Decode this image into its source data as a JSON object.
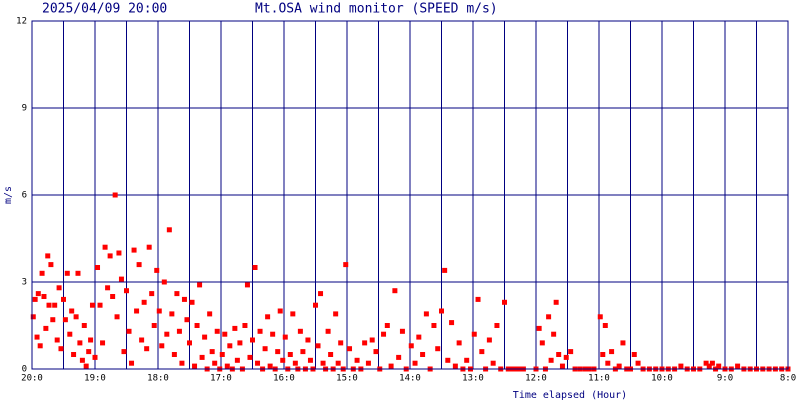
{
  "chart_data": {
    "type": "scatter",
    "date": "2025/04/09 20:00",
    "title": "Mt.OSA wind monitor (SPEED m/s)",
    "y_label": "m/s",
    "x_label": "Time elapsed (Hour)",
    "color": "#ff0000",
    "grid": true,
    "xlim": [
      0,
      12
    ],
    "ylim": [
      0,
      12
    ],
    "yticks": [
      0,
      3,
      6,
      9,
      12
    ],
    "xticks": [
      {
        "value": 0,
        "label": "20:0"
      },
      {
        "value": 1,
        "label": "19:0"
      },
      {
        "value": 2,
        "label": "18:0"
      },
      {
        "value": 3,
        "label": "17:0"
      },
      {
        "value": 4,
        "label": "16:0"
      },
      {
        "value": 5,
        "label": "15:0"
      },
      {
        "value": 6,
        "label": "14:0"
      },
      {
        "value": 7,
        "label": "13:0"
      },
      {
        "value": 8,
        "label": "12:0"
      },
      {
        "value": 9,
        "label": "11:0"
      },
      {
        "value": 10,
        "label": "10:0"
      },
      {
        "value": 11,
        "label": "9:0"
      },
      {
        "value": 12,
        "label": "8:0"
      }
    ],
    "x": [
      0.02,
      0.05,
      0.08,
      0.1,
      0.13,
      0.16,
      0.19,
      0.22,
      0.25,
      0.27,
      0.3,
      0.33,
      0.36,
      0.4,
      0.43,
      0.46,
      0.5,
      0.53,
      0.56,
      0.6,
      0.63,
      0.66,
      0.7,
      0.73,
      0.76,
      0.8,
      0.83,
      0.86,
      0.9,
      0.93,
      0.96,
      1.0,
      1.04,
      1.08,
      1.12,
      1.16,
      1.2,
      1.24,
      1.28,
      1.32,
      1.35,
      1.38,
      1.42,
      1.46,
      1.5,
      1.54,
      1.58,
      1.62,
      1.66,
      1.7,
      1.74,
      1.78,
      1.82,
      1.86,
      1.9,
      1.94,
      1.98,
      2.02,
      2.06,
      2.1,
      2.14,
      2.18,
      2.22,
      2.26,
      2.3,
      2.34,
      2.38,
      2.42,
      2.46,
      2.5,
      2.54,
      2.58,
      2.62,
      2.66,
      2.7,
      2.74,
      2.78,
      2.82,
      2.86,
      2.9,
      2.94,
      2.98,
      3.02,
      3.06,
      3.1,
      3.14,
      3.18,
      3.22,
      3.26,
      3.3,
      3.34,
      3.38,
      3.42,
      3.46,
      3.5,
      3.54,
      3.58,
      3.62,
      3.66,
      3.7,
      3.74,
      3.78,
      3.82,
      3.86,
      3.9,
      3.94,
      3.98,
      4.02,
      4.06,
      4.1,
      4.14,
      4.18,
      4.22,
      4.26,
      4.3,
      4.34,
      4.38,
      4.42,
      4.46,
      4.5,
      4.54,
      4.58,
      4.62,
      4.66,
      4.7,
      4.74,
      4.78,
      4.82,
      4.86,
      4.9,
      4.94,
      4.98,
      5.04,
      5.1,
      5.16,
      5.22,
      5.28,
      5.34,
      5.4,
      5.46,
      5.52,
      5.58,
      5.64,
      5.7,
      5.76,
      5.82,
      5.88,
      5.94,
      6.02,
      6.08,
      6.14,
      6.2,
      6.26,
      6.32,
      6.38,
      6.44,
      6.5,
      6.55,
      6.6,
      6.66,
      6.72,
      6.78,
      6.84,
      6.9,
      6.96,
      7.02,
      7.08,
      7.14,
      7.2,
      7.26,
      7.32,
      7.38,
      7.44,
      7.5,
      7.56,
      7.62,
      7.68,
      7.74,
      7.8,
      8.0,
      8.05,
      8.1,
      8.15,
      8.2,
      8.24,
      8.28,
      8.32,
      8.36,
      8.42,
      8.48,
      8.55,
      8.62,
      8.7,
      8.78,
      8.84,
      8.92,
      9.02,
      9.06,
      9.1,
      9.14,
      9.2,
      9.26,
      9.32,
      9.38,
      9.44,
      9.5,
      9.56,
      9.62,
      9.7,
      9.8,
      9.9,
      10.0,
      10.1,
      10.2,
      10.3,
      10.4,
      10.5,
      10.6,
      10.7,
      10.75,
      10.8,
      10.85,
      10.9,
      11.0,
      11.1,
      11.2,
      11.3,
      11.4,
      11.5,
      11.6,
      11.7,
      11.8,
      11.9,
      12.0
    ],
    "values": [
      1.8,
      2.4,
      1.1,
      2.6,
      0.8,
      3.3,
      2.5,
      1.4,
      3.9,
      2.2,
      3.6,
      1.7,
      2.2,
      1.0,
      2.8,
      0.7,
      2.4,
      1.7,
      3.3,
      1.2,
      2.0,
      0.5,
      1.8,
      3.3,
      0.9,
      0.3,
      1.5,
      0.1,
      0.6,
      1.0,
      2.2,
      0.4,
      3.5,
      2.2,
      0.9,
      4.2,
      2.8,
      3.9,
      2.5,
      6.0,
      1.8,
      4.0,
      3.1,
      0.6,
      2.7,
      1.3,
      0.2,
      4.1,
      2.0,
      3.6,
      1.0,
      2.3,
      0.7,
      4.2,
      2.6,
      1.5,
      3.4,
      2.0,
      0.8,
      3.0,
      1.2,
      4.8,
      1.9,
      0.5,
      2.6,
      1.3,
      0.2,
      2.4,
      1.7,
      0.9,
      2.3,
      0.1,
      1.5,
      2.9,
      0.4,
      1.1,
      0.0,
      1.9,
      0.6,
      0.2,
      1.3,
      0.0,
      0.5,
      1.2,
      0.1,
      0.8,
      0.0,
      1.4,
      0.3,
      0.9,
      0.0,
      1.5,
      2.9,
      0.4,
      1.0,
      3.5,
      0.2,
      1.3,
      0.0,
      0.7,
      1.8,
      0.1,
      1.2,
      0.0,
      0.6,
      2.0,
      0.3,
      1.1,
      0.0,
      0.5,
      1.9,
      0.2,
      0.0,
      1.3,
      0.6,
      0.0,
      1.0,
      0.3,
      0.0,
      2.2,
      0.8,
      2.6,
      0.2,
      0.0,
      1.3,
      0.5,
      0.0,
      1.9,
      0.2,
      0.9,
      0.0,
      3.6,
      0.7,
      0.0,
      0.3,
      0.0,
      0.9,
      0.2,
      1.0,
      0.6,
      0.0,
      1.2,
      1.5,
      0.1,
      2.7,
      0.4,
      1.3,
      0.0,
      0.8,
      0.2,
      1.1,
      0.5,
      1.9,
      0.0,
      1.5,
      0.7,
      2.0,
      3.4,
      0.3,
      1.6,
      0.1,
      0.9,
      0.0,
      0.3,
      0.0,
      1.2,
      2.4,
      0.6,
      0.0,
      1.0,
      0.2,
      1.5,
      0.0,
      2.3,
      0.0,
      0.0,
      0.0,
      0.0,
      0.0,
      0.0,
      1.4,
      0.9,
      0.0,
      1.8,
      0.3,
      1.2,
      2.3,
      0.5,
      0.1,
      0.4,
      0.6,
      0.0,
      0.0,
      0.0,
      0.0,
      0.0,
      1.8,
      0.5,
      1.5,
      0.2,
      0.6,
      0.0,
      0.1,
      0.9,
      0.0,
      0.0,
      0.5,
      0.2,
      0.0,
      0.0,
      0.0,
      0.0,
      0.0,
      0.0,
      0.1,
      0.0,
      0.0,
      0.0,
      0.2,
      0.1,
      0.2,
      0.0,
      0.1,
      0.0,
      0.0,
      0.1,
      0.0,
      0.0,
      0.0,
      0.0,
      0.0,
      0.0,
      0.0,
      0.0
    ]
  }
}
